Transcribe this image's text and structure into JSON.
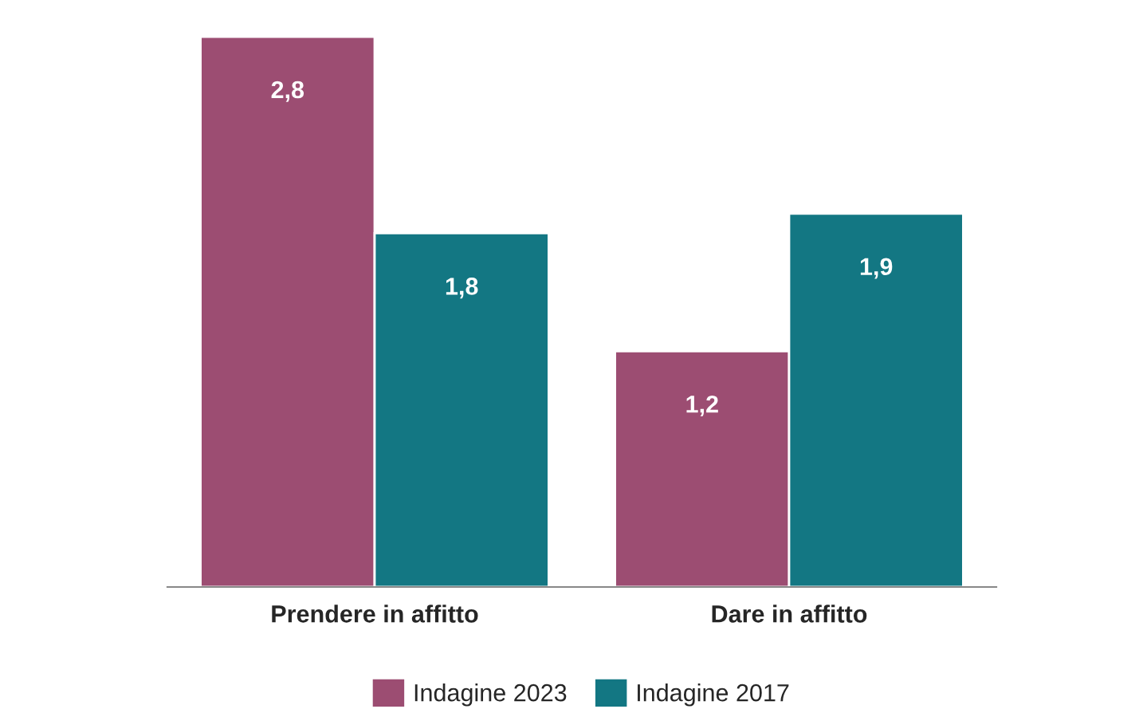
{
  "chart_data": {
    "type": "bar",
    "categories": [
      "Prendere in affitto",
      "Dare in affitto"
    ],
    "series": [
      {
        "name": "Indagine 2023",
        "color": "#9c4d72",
        "values": [
          2.8,
          1.2
        ],
        "value_labels": [
          "2,8",
          "1,2"
        ]
      },
      {
        "name": "Indagine 2017",
        "color": "#137783",
        "values": [
          1.8,
          1.9
        ],
        "value_labels": [
          "1,8",
          "1,9"
        ]
      }
    ],
    "legend": "bottom",
    "grid": false
  }
}
